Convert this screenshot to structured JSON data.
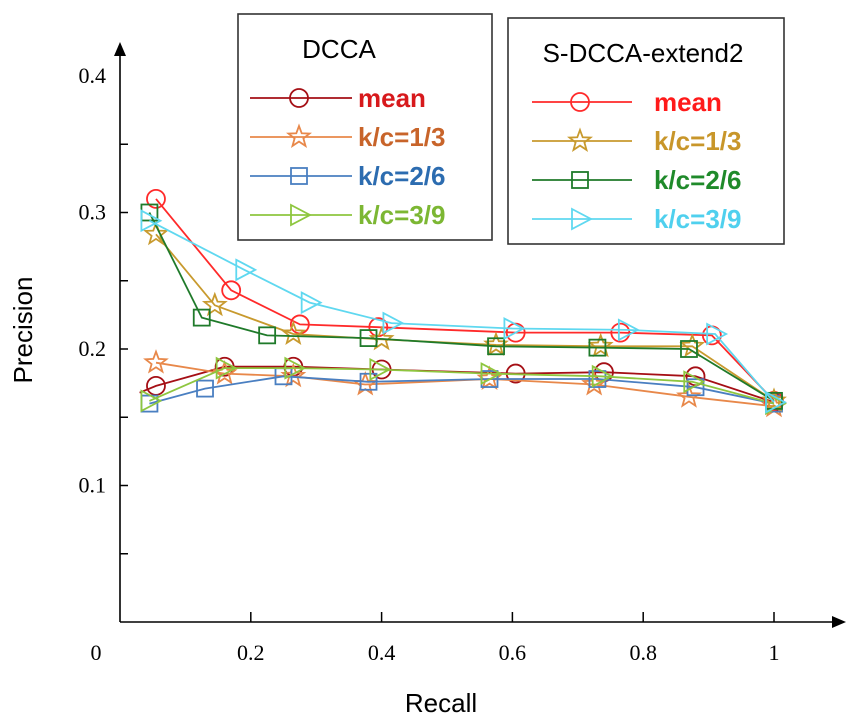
{
  "chart_data": {
    "type": "line",
    "xlabel": "Recall",
    "ylabel": "Precision",
    "xlim": [
      0,
      1.07
    ],
    "ylim": [
      0,
      0.42
    ],
    "x_ticks": [
      "0",
      "0.2",
      "0.4",
      "0.6",
      "0.8",
      "1"
    ],
    "y_ticks": [
      "0.1",
      "0.2",
      "0.3",
      "0.4"
    ],
    "legends": [
      {
        "title": "DCCA",
        "entries": [
          {
            "label": "mean",
            "color": "#a50f15",
            "text_color": "#d7191c",
            "marker": "circle"
          },
          {
            "label": "k/c=1/3",
            "color": "#e8884a",
            "text_color": "#c8642a",
            "marker": "star"
          },
          {
            "label": "k/c=2/6",
            "color": "#4a7fc1",
            "text_color": "#2c6cb0",
            "marker": "square"
          },
          {
            "label": "k/c=3/9",
            "color": "#8ec63f",
            "text_color": "#7cb733",
            "marker": "triangle-right"
          }
        ]
      },
      {
        "title": "S-DCCA-extend2",
        "entries": [
          {
            "label": "mean",
            "color": "#ff2a2a",
            "text_color": "#ff1a1a",
            "marker": "circle"
          },
          {
            "label": "k/c=1/3",
            "color": "#c89a2e",
            "text_color": "#c8962a",
            "marker": "star"
          },
          {
            "label": "k/c=2/6",
            "color": "#1f7a2a",
            "text_color": "#1f8a2a",
            "marker": "square"
          },
          {
            "label": "k/c=3/9",
            "color": "#5fd8f0",
            "text_color": "#4fd0ee",
            "marker": "triangle-right"
          }
        ]
      }
    ],
    "series": [
      {
        "name": "DCCA mean",
        "color": "#a50f15",
        "marker": "circle",
        "x": [
          0.03,
          0.055,
          0.16,
          0.265,
          0.4,
          0.605,
          0.74,
          0.88,
          1.0
        ],
        "y": [
          0.168,
          0.173,
          0.187,
          0.187,
          0.185,
          0.182,
          0.183,
          0.18,
          0.161
        ]
      },
      {
        "name": "DCCA k/c=1/3",
        "color": "#e8884a",
        "marker": "star",
        "x": [
          0.055,
          0.16,
          0.265,
          0.375,
          0.565,
          0.725,
          0.87,
          1.0
        ],
        "y": [
          0.19,
          0.182,
          0.18,
          0.174,
          0.178,
          0.174,
          0.165,
          0.158
        ]
      },
      {
        "name": "DCCA k/c=2/6",
        "color": "#4a7fc1",
        "marker": "square",
        "x": [
          0.045,
          0.13,
          0.25,
          0.38,
          0.565,
          0.73,
          0.88,
          1.0
        ],
        "y": [
          0.16,
          0.171,
          0.18,
          0.176,
          0.178,
          0.178,
          0.172,
          0.16
        ]
      },
      {
        "name": "DCCA k/c=3/9",
        "color": "#8ec63f",
        "marker": "triangle-right",
        "x": [
          0.045,
          0.16,
          0.265,
          0.395,
          0.565,
          0.735,
          0.875,
          1.0
        ],
        "y": [
          0.162,
          0.186,
          0.186,
          0.185,
          0.182,
          0.18,
          0.176,
          0.16
        ]
      },
      {
        "name": "S-DCCA-extend2 mean",
        "color": "#ff2a2a",
        "marker": "circle",
        "x": [
          0.055,
          0.17,
          0.275,
          0.395,
          0.605,
          0.765,
          0.905,
          1.0
        ],
        "y": [
          0.31,
          0.243,
          0.218,
          0.216,
          0.212,
          0.212,
          0.21,
          0.162
        ]
      },
      {
        "name": "S-DCCA-extend2 k/c=1/3",
        "color": "#c89a2e",
        "marker": "star",
        "x": [
          0.055,
          0.145,
          0.265,
          0.4,
          0.575,
          0.735,
          0.875,
          1.0
        ],
        "y": [
          0.284,
          0.232,
          0.211,
          0.207,
          0.203,
          0.202,
          0.202,
          0.162
        ]
      },
      {
        "name": "S-DCCA-extend2 k/c=2/6",
        "color": "#1f7a2a",
        "marker": "square",
        "x": [
          0.045,
          0.125,
          0.225,
          0.38,
          0.575,
          0.73,
          0.87,
          1.0
        ],
        "y": [
          0.3,
          0.223,
          0.21,
          0.208,
          0.202,
          0.201,
          0.2,
          0.162
        ]
      },
      {
        "name": "S-DCCA-extend2 k/c=3/9",
        "color": "#5fd8f0",
        "marker": "triangle-right",
        "x": [
          0.045,
          0.19,
          0.29,
          0.415,
          0.6,
          0.775,
          0.91,
          1.0
        ],
        "y": [
          0.294,
          0.258,
          0.234,
          0.219,
          0.215,
          0.214,
          0.211,
          0.161
        ]
      }
    ]
  }
}
